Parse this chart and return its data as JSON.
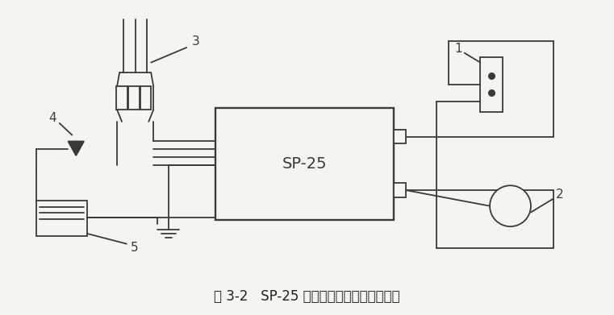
{
  "title": "图 3-2   SP-25 型高频感应加热设备示意图",
  "title_fontsize": 12,
  "bg_color": "#f5f5f0",
  "line_color": "#3a3a3a",
  "lw": 1.3,
  "label_1": "1",
  "label_2": "2",
  "label_3": "3",
  "label_4": "4",
  "label_5": "5",
  "sp25_label": "SP-25",
  "fig_w": 7.61,
  "fig_h": 3.91
}
